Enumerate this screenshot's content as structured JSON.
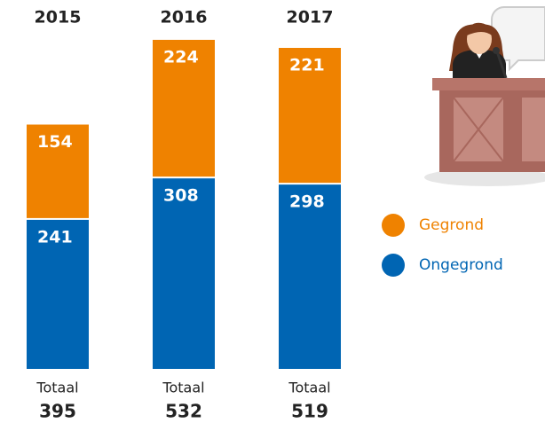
{
  "chart_data": {
    "type": "stacked-bar",
    "categories": [
      "2015",
      "2016",
      "2017"
    ],
    "series": [
      {
        "name": "Ongegrond",
        "color": "#0065b3",
        "values": [
          241,
          308,
          298
        ]
      },
      {
        "name": "Gegrond",
        "color": "#ef8200",
        "values": [
          154,
          224,
          221
        ]
      }
    ],
    "total_label": "Totaal",
    "totals": [
      395,
      532,
      519
    ]
  }
}
